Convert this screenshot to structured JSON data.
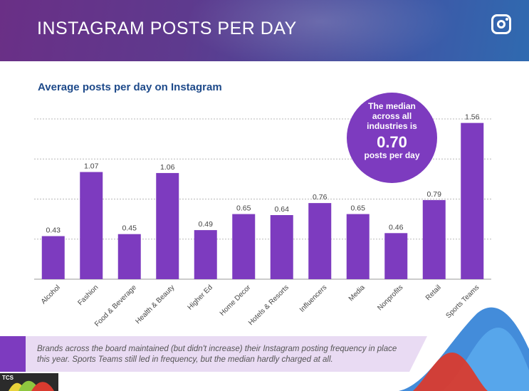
{
  "header": {
    "title": "INSTAGRAM POSTS PER DAY",
    "icon": "instagram-icon"
  },
  "callout": {
    "line1": "The median across all industries is",
    "value": "0.70",
    "line2": "posts per day"
  },
  "footer": {
    "text": "Brands across the board maintained (but didn't increase) their Instagram posting frequency in place this year. Sports Teams still led in frequency, but the median hardly charged at all."
  },
  "logo": {
    "text": "TCS"
  },
  "colors": {
    "bar": "#7d3bbf",
    "title": "#1e4a8a",
    "header": "#5e3a8e"
  },
  "chart_data": {
    "type": "bar",
    "title": "Average posts per day on Instagram",
    "categories": [
      "Alcohol",
      "Fashion",
      "Food & Beverage",
      "Health & Beauty",
      "Higher Ed",
      "Home Decor",
      "Hotels & Resorts",
      "Influencers",
      "Media",
      "Nonprofits",
      "Retail",
      "Sports Teams"
    ],
    "values": [
      0.43,
      1.07,
      0.45,
      1.06,
      0.49,
      0.65,
      0.64,
      0.76,
      0.65,
      0.46,
      0.79,
      1.56
    ],
    "value_labels": [
      "0.43",
      "1.07",
      "0.45",
      "1.06",
      "0.49",
      "0.65",
      "0.64",
      "0.76",
      "0.65",
      "0.46",
      "0.79",
      "1.56"
    ],
    "ylim": [
      0,
      1.6
    ],
    "grid": true,
    "xlabel": "",
    "ylabel": ""
  }
}
